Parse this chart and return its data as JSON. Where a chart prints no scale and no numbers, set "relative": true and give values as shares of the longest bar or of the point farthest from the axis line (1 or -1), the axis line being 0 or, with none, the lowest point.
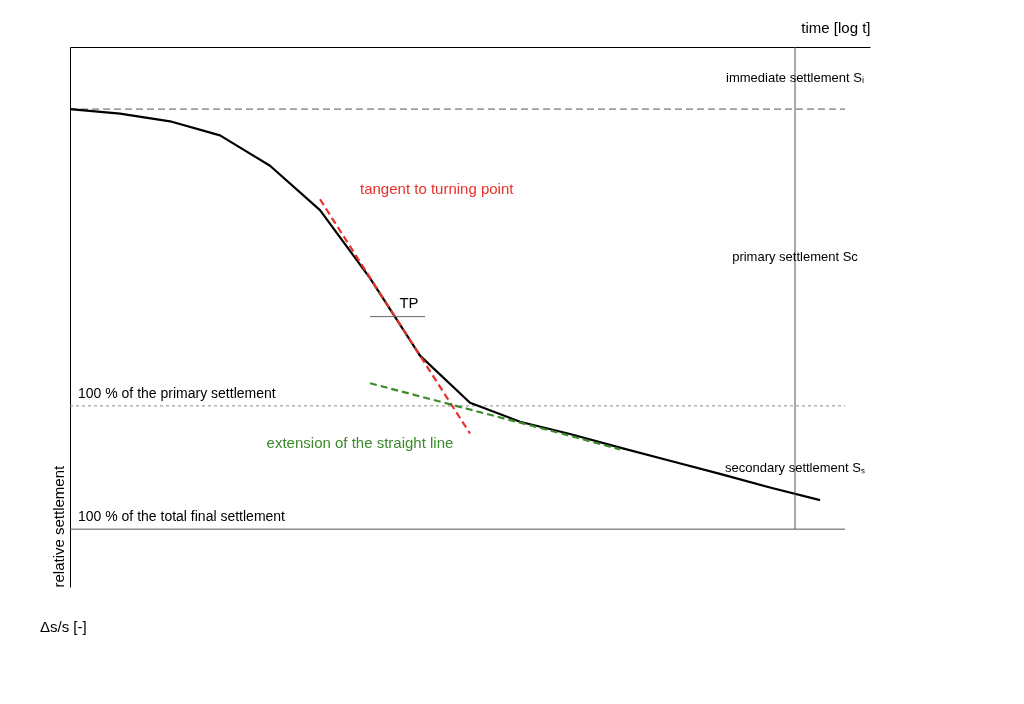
{
  "chart_data": {
    "type": "line",
    "relative": true,
    "tick_labels": false,
    "xlabel": "time [log t]",
    "ylabel": "relative settlement",
    "categories": [
      null,
      null,
      null,
      null,
      null,
      null,
      null,
      null,
      null,
      null,
      null,
      null,
      null,
      null,
      null,
      null
    ],
    "series": [
      {
        "color": "#000000",
        "line_style": "solid",
        "values": [
          -0.137,
          -0.147,
          -0.164,
          -0.195,
          -0.262,
          -0.36,
          -0.51,
          -0.681,
          -0.785,
          -0.827,
          -0.854,
          -0.884,
          -0.913,
          -0.942,
          -0.972,
          -1.0
        ]
      },
      {
        "name": "tangent to turning point",
        "color": "#e8312a",
        "line_style": "dashed",
        "values": [
          null,
          null,
          null,
          null,
          null,
          -0.336,
          -0.509,
          -0.681,
          -0.853,
          null,
          null,
          null,
          null,
          null,
          null,
          null
        ]
      },
      {
        "name": "extension of the straight line",
        "color": "#3a8a2a",
        "line_style": "dashed",
        "values": [
          null,
          null,
          null,
          null,
          null,
          null,
          -0.742,
          -0.771,
          -0.8,
          -0.829,
          -0.858,
          -0.888,
          null,
          null,
          null,
          null
        ]
      }
    ],
    "ref_lines": [
      {
        "axis": "y",
        "value": -0.137,
        "color": "#555555",
        "line_style": "dashed"
      },
      {
        "axis": "y",
        "value": -0.792,
        "label": "100 % of the primary settlement",
        "color": "#888888",
        "line_style": "dotted"
      },
      {
        "axis": "y",
        "value": -1.064,
        "label": "100 % of the total final settlement",
        "color": "#555555",
        "line_style": "solid"
      }
    ],
    "annotations": [
      "TP",
      "Δs/s [-]",
      "immediate settlement Sᵢ",
      "primary settlement Sc",
      "secondary settlement Sₛ"
    ]
  }
}
